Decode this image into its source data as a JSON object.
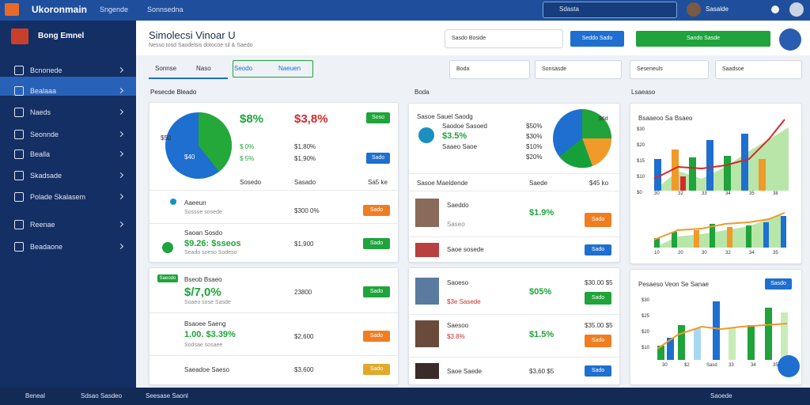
{
  "topbar": {
    "brand": "Ukoronmain",
    "nav": "Sngende",
    "menu": "Sonnsedna",
    "search": "Sdasta",
    "user": "Sasalde"
  },
  "sidebar": {
    "title": "Bong Emnel",
    "items": [
      "Bcnonede",
      "Bealaaa",
      "Naeds",
      "Seonnde",
      "Bealla",
      "Skadsade",
      "Polade Skalasem",
      "Reenae",
      "Beadaone"
    ]
  },
  "header": {
    "title": "Simolecsi Vinoar U",
    "subtitle": "Nesso tosd Saodelsis dotocoe sil & Saedo",
    "select": "Sasdo Boside",
    "btn1": "Seddo Sado",
    "btn2": "Sando Sasde"
  },
  "tabs": [
    "Sonnse",
    "Naso",
    "Seodo",
    "Naeuen"
  ],
  "toolbar": [
    "Boda",
    "Sonsasde",
    "Seseneuls",
    "Saadsoe"
  ],
  "sections": [
    "Pesecde Bleado",
    "Boda",
    "Lsaeaso"
  ],
  "card_a": {
    "pie_labels": [
      "$50",
      "$40"
    ],
    "big1": "$8%",
    "big2": "$3,8%",
    "btn_top": "Soso",
    "small1": "$ 0%",
    "small2": "$ 5%",
    "gray1": "$1,80%",
    "gray2": "$1,90%",
    "btn_blue": "Sado",
    "foot1": "Sosedo",
    "foot2": "Sasado",
    "foot3": "Sa5 ke",
    "rows": [
      {
        "title": "Aaeeun",
        "sub": "Sossoe sosede",
        "amount": "$300 0%",
        "btn": "Sado"
      },
      {
        "title": "Saoan Sosdo",
        "sub": "$9.26: $sseos",
        "sub2": "Seado soeso Sodeso",
        "amount": "$1,900",
        "btn": "Sado"
      }
    ]
  },
  "card_b": {
    "badge": "Saeodo",
    "rows": [
      {
        "title": "Bseob Bsaeo",
        "value": "$/7,0%",
        "sub": "Soaeo sose Sasde",
        "amount": "23800",
        "btn": "Sado"
      },
      {
        "title": "Bsaoee Saeng",
        "value": "1.00. $3.39%",
        "sub": "Sodsae sosaee",
        "amount": "$2,600",
        "btn": "Sado"
      },
      {
        "title": "Saeadoe Saeso",
        "amount": "$3,600",
        "btn": "Sado"
      }
    ]
  },
  "card_c": {
    "title": "Sasoe Sauel Saodg",
    "lines": [
      "Saodoe Sasoed",
      "$3.5%",
      "Saaeo Saoe"
    ],
    "pcts": [
      "$50%",
      "$30%",
      "$10%",
      "$20%"
    ],
    "pie_label": "$6d",
    "head": [
      "Sasoe Maeldende",
      "Saede",
      "$45 ko"
    ],
    "rows": [
      {
        "title": "Saeddo",
        "sub": "Saseo",
        "value": "$1.9%",
        "btn": "Sado"
      },
      {
        "title": "Saoe sosede",
        "btn": "Sado"
      }
    ]
  },
  "card_d": {
    "rows": [
      {
        "title": "Saoeso",
        "sub": "$3e Sasede",
        "value": "$05%",
        "right": "$30.00 $5",
        "btn": "Sado"
      },
      {
        "title": "Saesoo",
        "sub": "$3.8%",
        "value": "$1.5%",
        "right": "$35.00 $5",
        "btn": "Sado"
      },
      {
        "title": "Saoe Saede",
        "value": "$3,60 $5",
        "btn": "Sado"
      }
    ]
  },
  "card_e": {
    "title": "Bsaaeoo Sa Bsaeo",
    "yticks": [
      "$30",
      "$20",
      "$15",
      "$10",
      "$0"
    ],
    "xticks": [
      "30",
      "32",
      "33",
      "34",
      "35",
      "38"
    ],
    "xticks2": [
      "10",
      "20",
      "30",
      "32",
      "34",
      "35"
    ]
  },
  "card_f": {
    "title": "Pesaeso Veon Se Sanae",
    "btn": "Sasdo",
    "yticks": [
      "$30",
      "$25",
      "$20",
      "$10"
    ],
    "xticks": [
      "30",
      "$2",
      "Sasd",
      "33",
      "34",
      "35"
    ]
  },
  "footer": {
    "left": "Beneal",
    "mid1": "Sdsao Sasdeo",
    "mid2": "Seesase Saonl",
    "right": "Saoede"
  }
}
